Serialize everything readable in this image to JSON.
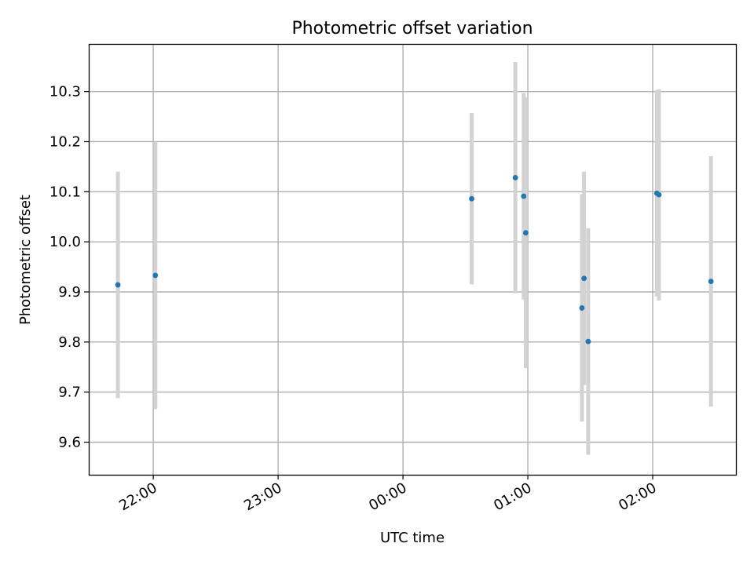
{
  "chart_data": {
    "type": "scatter",
    "title": "Photometric offset variation",
    "xlabel": "UTC time",
    "ylabel": "Photometric offset",
    "x_ticks": [
      "22:00",
      "23:00",
      "00:00",
      "01:00",
      "02:00"
    ],
    "x_tick_minutes": [
      1320,
      1380,
      1440,
      1500,
      1560
    ],
    "y_ticks": [
      "9.6",
      "9.7",
      "9.8",
      "9.9",
      "10.0",
      "10.1",
      "10.2",
      "10.3"
    ],
    "xlim_minutes": [
      1289,
      1600
    ],
    "ylim": [
      9.535,
      10.395
    ],
    "grid": true,
    "marker_color": "#1f77b4",
    "errorbar_color": "#d3d3d3",
    "points": [
      {
        "time": "21:43",
        "t": 1303,
        "y": 9.914,
        "err": 0.226
      },
      {
        "time": "22:01",
        "t": 1321,
        "y": 9.933,
        "err": 0.267
      },
      {
        "time": "00:33",
        "t": 1473,
        "y": 10.086,
        "err": 0.171
      },
      {
        "time": "00:54",
        "t": 1494,
        "y": 10.128,
        "err": 0.231
      },
      {
        "time": "00:58",
        "t": 1498,
        "y": 10.091,
        "err": 0.206
      },
      {
        "time": "00:59",
        "t": 1499,
        "y": 10.018,
        "err": 0.27
      },
      {
        "time": "01:26",
        "t": 1526,
        "y": 9.868,
        "err": 0.227
      },
      {
        "time": "01:27",
        "t": 1527,
        "y": 9.927,
        "err": 0.213
      },
      {
        "time": "01:29",
        "t": 1529,
        "y": 9.801,
        "err": 0.226
      },
      {
        "time": "02:02",
        "t": 1562,
        "y": 10.097,
        "err": 0.206
      },
      {
        "time": "02:03",
        "t": 1563,
        "y": 10.094,
        "err": 0.211
      },
      {
        "time": "02:28",
        "t": 1588,
        "y": 9.921,
        "err": 0.25
      }
    ]
  }
}
